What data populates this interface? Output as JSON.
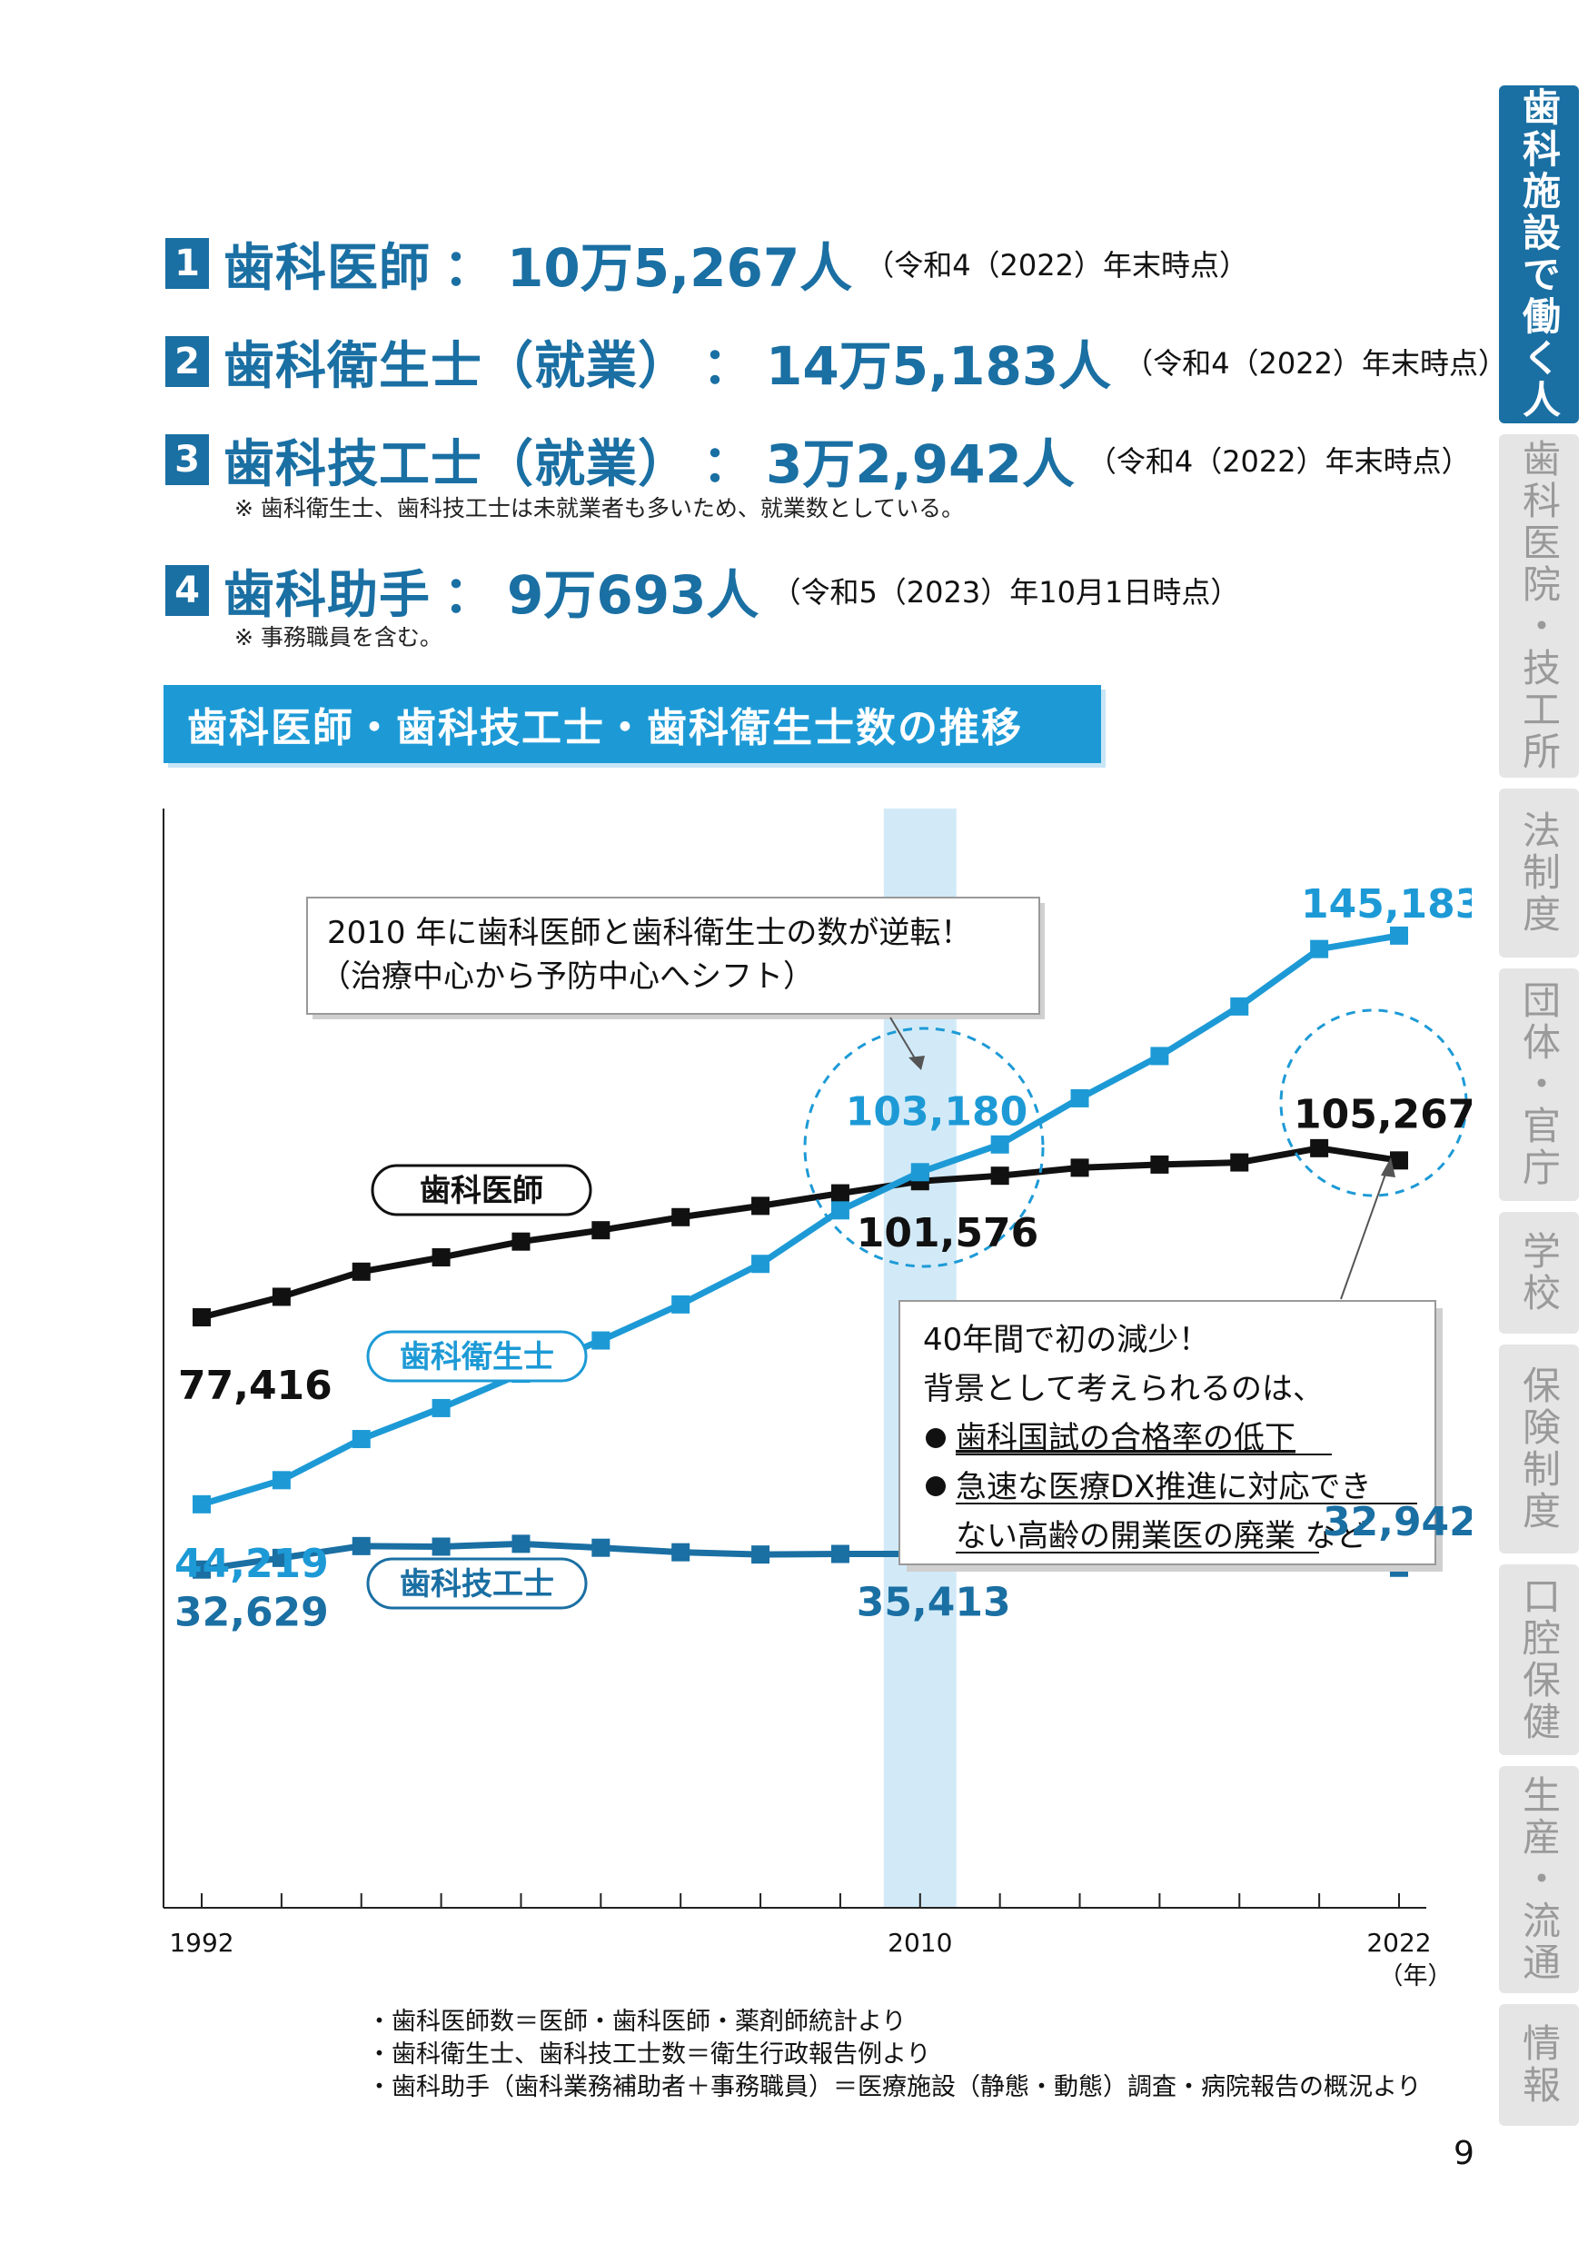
{
  "stats": [
    {
      "num": "1",
      "label": "歯科医師",
      "value": "10万5,267人",
      "date": "（令和4（2022）年末時点）"
    },
    {
      "num": "2",
      "label": "歯科衛生士（就業）",
      "value": "14万5,183人",
      "date": "（令和4（2022）年末時点）"
    },
    {
      "num": "3",
      "label": "歯科技工士（就業）",
      "value": "3万2,942人",
      "date": "（令和4（2022）年末時点）"
    },
    {
      "num": "4",
      "label": "歯科助手",
      "value": "9万693人",
      "date": "（令和5（2023）年10月1日時点）"
    }
  ],
  "notes": {
    "n3": "※ 歯科衛生士、歯科技工士は未就業者も多いため、就業数としている。",
    "n4": "※ 事務職員を含む。"
  },
  "chart_title": "歯科医師・歯科技工士・歯科衛生士数の推移",
  "chart_data": {
    "type": "line",
    "x": [
      1992,
      1994,
      1996,
      1998,
      2000,
      2002,
      2004,
      2006,
      2008,
      2010,
      2012,
      2014,
      2016,
      2018,
      2020,
      2022
    ],
    "xlim": [
      1992,
      2022
    ],
    "ylim": [
      0,
      150000
    ],
    "highlight_x": 2010,
    "x_tick_labels": [
      "1992",
      "2010",
      "2022"
    ],
    "x_unit": "（年）",
    "series": [
      {
        "name": "歯科医師",
        "color": "#111111",
        "values": [
          77416,
          81055,
          85518,
          88061,
          90857,
          92874,
          95197,
          97198,
          99426,
          101576,
          102551,
          103972,
          104533,
          104908,
          107443,
          105267
        ]
      },
      {
        "name": "歯科衛生士",
        "color": "#1d9ad6",
        "values": [
          44219,
          48500,
          55800,
          61300,
          67400,
          73300,
          79700,
          86900,
          96400,
          103180,
          108100,
          116300,
          123800,
          132600,
          142800,
          145183
        ]
      },
      {
        "name": "歯科技工士",
        "color": "#1a6fa3",
        "values": [
          32629,
          34700,
          36800,
          36700,
          37200,
          36500,
          35700,
          35300,
          35400,
          35413,
          34600,
          34600,
          34700,
          34500,
          34800,
          32942
        ]
      }
    ],
    "data_labels": [
      {
        "text": "77,416",
        "series": 0,
        "i": 0
      },
      {
        "text": "101,576",
        "series": 0,
        "i": 9
      },
      {
        "text": "105,267",
        "series": 0,
        "i": 15
      },
      {
        "text": "44,219",
        "series": 1,
        "i": 0
      },
      {
        "text": "103,180",
        "series": 1,
        "i": 9
      },
      {
        "text": "145,183",
        "series": 1,
        "i": 15
      },
      {
        "text": "32,629",
        "series": 2,
        "i": 0
      },
      {
        "text": "35,413",
        "series": 2,
        "i": 9
      },
      {
        "text": "32,942",
        "series": 2,
        "i": 15
      }
    ],
    "callout1": [
      "2010 年に歯科医師と歯科衛生士の数が逆転！",
      "（治療中心から予防中心へシフト）"
    ],
    "callout2": {
      "line1": "40年間で初の減少！",
      "line2": "背景として考えられるのは、",
      "bullet1": "歯科国試の合格率の低下",
      "bullet2a": "急速な医療DX推進に対応でき",
      "bullet2b": "ない高齢の開業医の廃業",
      "bullet2_suffix": " など"
    }
  },
  "sources": [
    "・歯科医師数＝医師・歯科医師・薬剤師統計より",
    "・歯科衛生士、歯科技工士数＝衛生行政報告例より",
    "・歯科助手（歯科業務補助者＋事務職員）＝医療施設（静態・動態）調査・病院報告の概況より"
  ],
  "side_tabs": [
    "歯科施設で働く人",
    "歯科医院・技工所",
    "法制度",
    "団体・官庁",
    "学校",
    "保険制度",
    "口腔保健",
    "生産・流通",
    "情報"
  ],
  "page_number": "9"
}
